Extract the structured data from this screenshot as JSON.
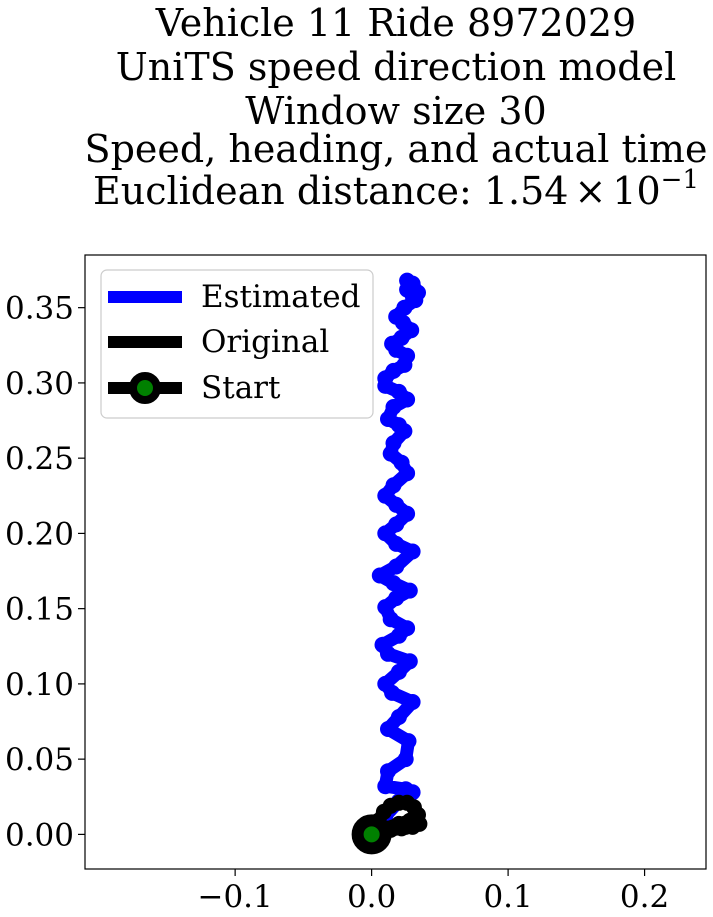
{
  "chart_data": {
    "type": "line",
    "title_lines": [
      "Vehicle 11 Ride 8972029",
      "UniTS speed direction model",
      "Window size 30",
      "Speed, heading, and actual time"
    ],
    "title_distance": {
      "prefix": "Euclidean distance: ",
      "mantissa": "1.54",
      "times": "×",
      "base": "10",
      "exponent": "−1"
    },
    "xlabel": "",
    "ylabel": "",
    "xlim": [
      -0.21,
      0.245
    ],
    "ylim": [
      -0.023,
      0.385
    ],
    "x_ticks": [
      -0.1,
      0.0,
      0.1,
      0.2
    ],
    "x_tick_labels": [
      "−0.1",
      "0.0",
      "0.1",
      "0.2"
    ],
    "y_ticks": [
      0.0,
      0.05,
      0.1,
      0.15,
      0.2,
      0.25,
      0.3,
      0.35
    ],
    "y_tick_labels": [
      "0.00",
      "0.05",
      "0.10",
      "0.15",
      "0.20",
      "0.25",
      "0.30",
      "0.35"
    ],
    "grid": false,
    "legend_position": "upper-left",
    "series": [
      {
        "name": "Estimated",
        "color": "#0000ff",
        "x": [
          0.0,
          0.01,
          0.02,
          0.03,
          0.025,
          0.01,
          0.012,
          0.025,
          0.027,
          0.012,
          0.02,
          0.03,
          0.015,
          0.01,
          0.02,
          0.028,
          0.012,
          0.008,
          0.02,
          0.026,
          0.014,
          0.01,
          0.018,
          0.028,
          0.016,
          0.006,
          0.018,
          0.03,
          0.018,
          0.01,
          0.018,
          0.026,
          0.018,
          0.01,
          0.016,
          0.026,
          0.022,
          0.014,
          0.016,
          0.024,
          0.02,
          0.012,
          0.016,
          0.026,
          0.02,
          0.01,
          0.01,
          0.016,
          0.024,
          0.026,
          0.018,
          0.015,
          0.022,
          0.029,
          0.023,
          0.018,
          0.024,
          0.032,
          0.03,
          0.026,
          0.034,
          0.03,
          0.026
        ],
        "y": [
          0.0,
          0.012,
          0.022,
          0.028,
          0.03,
          0.032,
          0.042,
          0.05,
          0.062,
          0.07,
          0.078,
          0.088,
          0.094,
          0.1,
          0.108,
          0.115,
          0.12,
          0.126,
          0.132,
          0.137,
          0.143,
          0.151,
          0.157,
          0.162,
          0.167,
          0.172,
          0.178,
          0.188,
          0.193,
          0.2,
          0.206,
          0.213,
          0.219,
          0.225,
          0.232,
          0.24,
          0.247,
          0.253,
          0.26,
          0.268,
          0.272,
          0.276,
          0.284,
          0.289,
          0.294,
          0.298,
          0.303,
          0.308,
          0.312,
          0.318,
          0.322,
          0.326,
          0.33,
          0.335,
          0.34,
          0.344,
          0.35,
          0.355,
          0.358,
          0.362,
          0.36,
          0.366,
          0.368
        ]
      },
      {
        "name": "Original",
        "color": "#000000",
        "x": [
          0.0,
          0.005,
          0.009,
          0.014,
          0.02,
          0.026,
          0.031,
          0.034,
          0.035,
          0.03,
          0.022,
          0.014,
          0.008,
          0.004,
          0.0,
          0.01,
          0.02,
          0.028,
          0.033,
          0.025
        ],
        "y": [
          0.0,
          0.009,
          0.015,
          0.019,
          0.021,
          0.021,
          0.018,
          0.013,
          0.007,
          0.005,
          0.004,
          0.003,
          0.002,
          0.001,
          0.0,
          0.004,
          0.007,
          0.009,
          0.008,
          0.005
        ]
      }
    ],
    "start_marker": {
      "name": "Start",
      "x": 0.0,
      "y": 0.0,
      "edge_color": "#000000",
      "face_color": "#008000"
    },
    "legend_entries": [
      "Estimated",
      "Original",
      "Start"
    ]
  }
}
